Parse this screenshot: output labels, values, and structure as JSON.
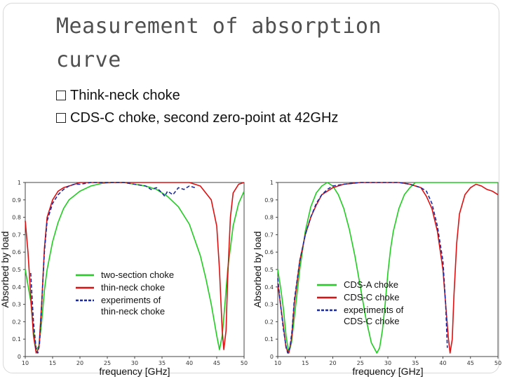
{
  "slide": {
    "title_line1": "Measurement of absorption",
    "title_line2": "curve",
    "bullets": [
      "Think-neck choke",
      "CDS-C  choke, second zero-point at 42GHz"
    ]
  },
  "chart_data": [
    {
      "type": "line",
      "xlabel": "frequency [GHz]",
      "ylabel": "Absorbed by load",
      "xlim": [
        10,
        50
      ],
      "ylim": [
        0,
        1
      ],
      "x_ticks": [
        "10",
        "15",
        "20",
        "25",
        "30",
        "35",
        "40",
        "45",
        "50"
      ],
      "y_ticks": [
        "1",
        "0.9",
        "0.8",
        "0.7",
        "0.6",
        "0.5",
        "0.4",
        "0.3",
        "0.2",
        "0.1",
        "0"
      ],
      "legend_position": "center",
      "series": [
        {
          "name": "two-section choke",
          "color": "#22cc22",
          "dash": "",
          "x": [
            10,
            11,
            11.5,
            12,
            12.5,
            13,
            13.5,
            14,
            15,
            16,
            17,
            18,
            20,
            22,
            24,
            26,
            28,
            30,
            32,
            34,
            36,
            38,
            40,
            42,
            43,
            44,
            45,
            45.5,
            46,
            46.5,
            47,
            48,
            49,
            50
          ],
          "y": [
            0.5,
            0.32,
            0.15,
            0.04,
            0.06,
            0.2,
            0.38,
            0.5,
            0.66,
            0.77,
            0.85,
            0.9,
            0.95,
            0.98,
            0.995,
            1.0,
            1.0,
            0.99,
            0.98,
            0.96,
            0.92,
            0.86,
            0.76,
            0.58,
            0.45,
            0.3,
            0.12,
            0.04,
            0.12,
            0.3,
            0.5,
            0.75,
            0.88,
            0.95
          ]
        },
        {
          "name": "thin-neck choke",
          "color": "#dd1111",
          "dash": "",
          "x": [
            10,
            10.5,
            11,
            11.5,
            12,
            12.5,
            13,
            13.5,
            14,
            15,
            16,
            17,
            18,
            19,
            20,
            22,
            25,
            30,
            35,
            40,
            42,
            44,
            45,
            45.5,
            46,
            46.3,
            46.7,
            47,
            47.5,
            48,
            49,
            50
          ],
          "y": [
            0.78,
            0.6,
            0.35,
            0.12,
            0.02,
            0.05,
            0.3,
            0.62,
            0.8,
            0.9,
            0.95,
            0.97,
            0.98,
            0.99,
            1.0,
            1.0,
            1.0,
            1.0,
            1.0,
            1.0,
            0.98,
            0.9,
            0.75,
            0.5,
            0.15,
            0.04,
            0.15,
            0.45,
            0.8,
            0.94,
            0.99,
            1.0
          ]
        },
        {
          "name": "experiments of\n thin-neck choke",
          "color": "#1a2aa0",
          "dash": "5,3",
          "x": [
            11,
            11.5,
            12,
            12.3,
            12.6,
            13,
            13.5,
            14,
            15,
            16,
            17,
            18,
            19,
            20,
            22,
            25,
            28,
            30,
            32,
            33,
            34,
            35,
            35.5,
            36,
            37,
            38,
            39,
            40,
            41
          ],
          "y": [
            0.48,
            0.2,
            0.04,
            0.02,
            0.07,
            0.3,
            0.6,
            0.78,
            0.88,
            0.93,
            0.96,
            0.98,
            0.99,
            0.99,
            1.0,
            1.0,
            1.0,
            0.99,
            0.98,
            0.96,
            0.97,
            0.94,
            0.92,
            0.95,
            0.93,
            0.97,
            0.96,
            0.98,
            0.97
          ]
        }
      ]
    },
    {
      "type": "line",
      "xlabel": "frequency [GHz]",
      "ylabel": "Absorbed by load",
      "xlim": [
        10,
        50
      ],
      "ylim": [
        0,
        1
      ],
      "x_ticks": [
        "10",
        "15",
        "20",
        "25",
        "30",
        "35",
        "40",
        "45",
        "50"
      ],
      "y_ticks": [
        "1",
        "0.9",
        "0.8",
        "0.7",
        "0.6",
        "0.5",
        "0.4",
        "0.3",
        "0.2",
        "0.1",
        "0"
      ],
      "legend_position": "bottom-right",
      "series": [
        {
          "name": "CDS-A choke",
          "color": "#22cc22",
          "dash": "",
          "x": [
            10,
            10.5,
            11,
            11.5,
            12,
            12.5,
            13,
            14,
            15,
            16,
            17,
            18,
            19,
            20,
            21,
            22,
            23,
            24,
            25,
            26,
            27,
            28,
            28.5,
            29,
            29.5,
            30,
            30.5,
            31,
            32,
            33,
            34,
            35,
            36,
            37,
            38,
            39,
            40,
            42,
            45,
            48,
            50
          ],
          "y": [
            0.5,
            0.4,
            0.28,
            0.12,
            0.02,
            0.08,
            0.22,
            0.5,
            0.72,
            0.86,
            0.94,
            0.98,
            1.0,
            0.98,
            0.93,
            0.85,
            0.73,
            0.58,
            0.4,
            0.22,
            0.08,
            0.02,
            0.05,
            0.15,
            0.3,
            0.48,
            0.62,
            0.72,
            0.85,
            0.93,
            0.97,
            1.0,
            1.0,
            1.0,
            1.0,
            1.0,
            1.0,
            1.0,
            1.0,
            1.0,
            1.0
          ]
        },
        {
          "name": "CDS-C choke",
          "color": "#dd1111",
          "dash": "",
          "x": [
            10,
            10.5,
            11,
            11.5,
            12,
            12.5,
            13,
            14,
            15,
            16,
            17,
            18,
            20,
            22,
            25,
            28,
            30,
            32,
            34,
            36,
            37,
            38,
            39,
            40,
            40.5,
            41,
            41.3,
            41.7,
            42,
            42.5,
            43,
            44,
            45,
            46,
            47,
            48,
            49,
            50
          ],
          "y": [
            0.42,
            0.3,
            0.18,
            0.05,
            0.02,
            0.1,
            0.3,
            0.55,
            0.7,
            0.8,
            0.87,
            0.93,
            0.97,
            0.99,
            1.0,
            1.0,
            1.0,
            1.0,
            0.99,
            0.97,
            0.92,
            0.85,
            0.72,
            0.5,
            0.3,
            0.1,
            0.02,
            0.1,
            0.35,
            0.65,
            0.82,
            0.93,
            0.97,
            0.99,
            0.98,
            0.96,
            0.95,
            0.93
          ]
        },
        {
          "name": "experiments of\nCDS-C choke",
          "color": "#1a2aa0",
          "dash": "5,3",
          "x": [
            10,
            10.5,
            11,
            11.5,
            11.8,
            12.2,
            12.6,
            13,
            14,
            15,
            16,
            17,
            18,
            19,
            20,
            22,
            25,
            28,
            30,
            32,
            34,
            36,
            37,
            38,
            39,
            40,
            40.5,
            40.8
          ],
          "y": [
            0.45,
            0.3,
            0.16,
            0.06,
            0.02,
            0.05,
            0.15,
            0.32,
            0.55,
            0.7,
            0.8,
            0.88,
            0.93,
            0.96,
            0.98,
            0.99,
            1.0,
            1.0,
            1.0,
            1.0,
            0.99,
            0.97,
            0.95,
            0.88,
            0.75,
            0.55,
            0.3,
            0.05
          ]
        }
      ]
    }
  ]
}
